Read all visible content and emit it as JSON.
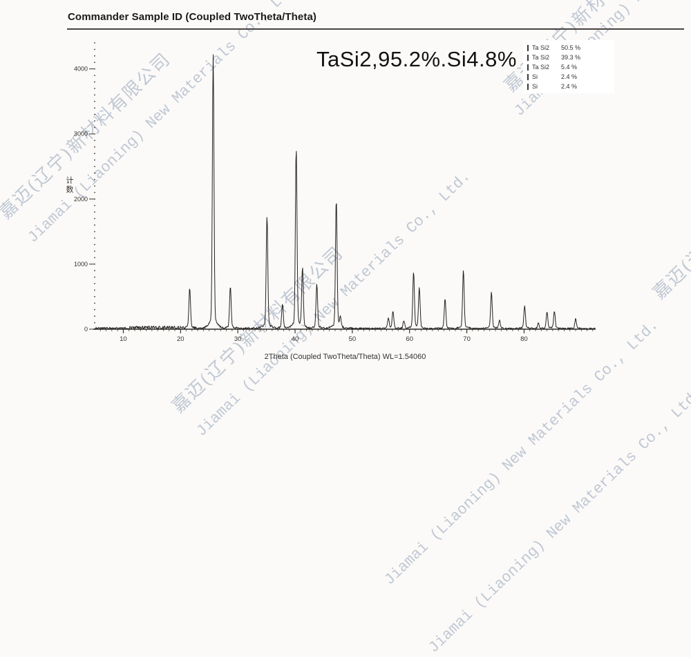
{
  "header": {
    "title": "Commander Sample ID (Coupled TwoTheta/Theta)"
  },
  "annotation": "TaSi2,95.2%.Si4.8%",
  "legend": {
    "marker_icon": "vertical-bar-icon",
    "marker_color": "#3a3632",
    "items": [
      {
        "phase": "Ta Si2",
        "value": "50.5 %"
      },
      {
        "phase": "Ta Si2",
        "value": "39.3 %"
      },
      {
        "phase": "Ta Si2",
        "value": "5.4 %"
      },
      {
        "phase": "Si",
        "value": "2.4 %"
      },
      {
        "phase": "Si",
        "value": "2.4 %"
      }
    ]
  },
  "watermark": {
    "cn": "嘉迈(辽宁)新材料有限公司",
    "en": "Jiamai (Liaoning) New Materials Co., Ltd."
  },
  "chart_data": {
    "type": "line",
    "title": "TaSi2,95.2%.Si4.8%",
    "xlabel": "2Theta (Coupled TwoTheta/Theta) WL=1.54060",
    "ylabel": "计数",
    "xlim": [
      5,
      92.5
    ],
    "ylim": [
      0,
      4400
    ],
    "x_ticks": [
      10,
      20,
      30,
      40,
      50,
      60,
      70,
      80
    ],
    "y_ticks": [
      0,
      1000,
      2000,
      3000,
      4000
    ],
    "grid": false,
    "legend_position": "top-right",
    "trace_color": "#24201d",
    "peaks": [
      {
        "two_theta": 21.6,
        "intensity": 600
      },
      {
        "two_theta": 25.7,
        "intensity": 4050
      },
      {
        "two_theta": 28.7,
        "intensity": 620
      },
      {
        "two_theta": 35.1,
        "intensity": 1680
      },
      {
        "two_theta": 37.8,
        "intensity": 370
      },
      {
        "two_theta": 40.2,
        "intensity": 2680
      },
      {
        "two_theta": 41.3,
        "intensity": 880
      },
      {
        "two_theta": 43.8,
        "intensity": 660
      },
      {
        "two_theta": 47.2,
        "intensity": 1920
      },
      {
        "two_theta": 47.9,
        "intensity": 140
      },
      {
        "two_theta": 56.3,
        "intensity": 150
      },
      {
        "two_theta": 57.1,
        "intensity": 260
      },
      {
        "two_theta": 59.0,
        "intensity": 110
      },
      {
        "two_theta": 60.7,
        "intensity": 840
      },
      {
        "two_theta": 61.7,
        "intensity": 610
      },
      {
        "two_theta": 66.2,
        "intensity": 440
      },
      {
        "two_theta": 69.4,
        "intensity": 865
      },
      {
        "two_theta": 74.3,
        "intensity": 535
      },
      {
        "two_theta": 75.7,
        "intensity": 120
      },
      {
        "two_theta": 80.1,
        "intensity": 330
      },
      {
        "two_theta": 82.5,
        "intensity": 80
      },
      {
        "two_theta": 84.0,
        "intensity": 250
      },
      {
        "two_theta": 85.3,
        "intensity": 260
      },
      {
        "two_theta": 89.0,
        "intensity": 140
      }
    ]
  }
}
